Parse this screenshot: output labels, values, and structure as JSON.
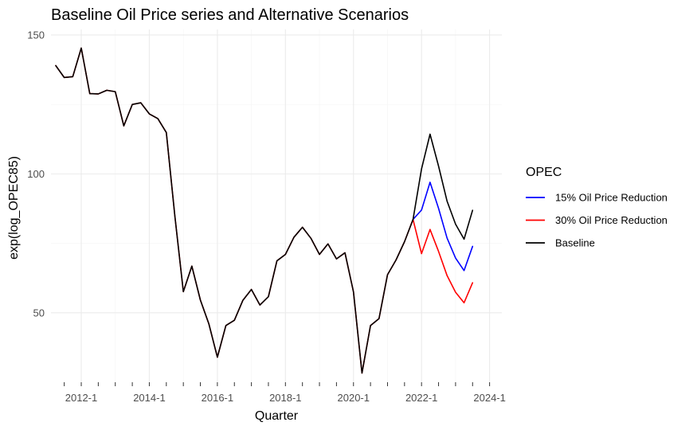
{
  "chart_data": {
    "type": "line",
    "title": "Baseline Oil Price series and Alternative Scenarios",
    "xlabel": "Quarter",
    "ylabel": "exp(log_OPEC85)",
    "x_ticks": [
      "2012-1",
      "2014-1",
      "2016-1",
      "2018-1",
      "2020-1",
      "2022-1",
      "2024-1"
    ],
    "x_tick_values": [
      2012.0,
      2014.0,
      2016.0,
      2018.0,
      2020.0,
      2022.0,
      2024.0
    ],
    "y_ticks": [
      50,
      100,
      150
    ],
    "xlim": [
      2011.11,
      2024.36
    ],
    "ylim": [
      25,
      152
    ],
    "grid": true,
    "legend": {
      "title": "OPEC",
      "position": "right",
      "entries": [
        "15% Oil Price Reduction",
        "30% Oil Price Reduction",
        "Baseline"
      ]
    },
    "series": [
      {
        "name": "15% Oil Price Reduction",
        "color": "#0000ff",
        "x": [
          2021.75,
          2022.0,
          2022.25,
          2022.5,
          2022.75,
          2023.0,
          2023.25,
          2023.5
        ],
        "y": [
          83.6,
          87.0,
          97.0,
          87.6,
          76.9,
          69.7,
          65.2,
          73.9
        ]
      },
      {
        "name": "30% Oil Price Reduction",
        "color": "#ff0000",
        "x": [
          2011.25,
          2011.5,
          2011.75,
          2012.0,
          2012.25,
          2012.5,
          2012.75,
          2013.0,
          2013.25,
          2013.5,
          2013.75,
          2014.0,
          2014.25,
          2014.5,
          2014.75,
          2015.0,
          2015.25,
          2015.5,
          2015.75,
          2016.0,
          2016.25,
          2016.5,
          2016.75,
          2017.0,
          2017.25,
          2017.5,
          2017.75,
          2018.0,
          2018.25,
          2018.5,
          2018.75,
          2019.0,
          2019.25,
          2019.5,
          2019.75,
          2020.0,
          2020.25,
          2020.5,
          2020.75,
          2021.0,
          2021.25,
          2021.5,
          2021.75,
          2022.0,
          2022.25,
          2022.5,
          2022.75,
          2023.0,
          2023.25,
          2023.5
        ],
        "y": [
          139.0,
          134.7,
          135.0,
          145.3,
          128.9,
          128.8,
          130.1,
          129.6,
          117.3,
          125.0,
          125.6,
          121.6,
          119.9,
          114.9,
          84.9,
          57.6,
          66.8,
          54.6,
          46.0,
          34.0,
          45.4,
          47.3,
          54.5,
          58.4,
          52.8,
          55.8,
          68.7,
          71.0,
          77.2,
          80.8,
          76.8,
          71.0,
          74.8,
          69.4,
          71.6,
          57.5,
          28.3,
          45.4,
          47.9,
          63.7,
          69.0,
          75.6,
          83.6,
          71.3,
          80.0,
          72.1,
          63.4,
          57.4,
          53.6,
          60.8
        ]
      },
      {
        "name": "Baseline",
        "color": "#000000",
        "x": [
          2011.25,
          2011.5,
          2011.75,
          2012.0,
          2012.25,
          2012.5,
          2012.75,
          2013.0,
          2013.25,
          2013.5,
          2013.75,
          2014.0,
          2014.25,
          2014.5,
          2014.75,
          2015.0,
          2015.25,
          2015.5,
          2015.75,
          2016.0,
          2016.25,
          2016.5,
          2016.75,
          2017.0,
          2017.25,
          2017.5,
          2017.75,
          2018.0,
          2018.25,
          2018.5,
          2018.75,
          2019.0,
          2019.25,
          2019.5,
          2019.75,
          2020.0,
          2020.25,
          2020.5,
          2020.75,
          2021.0,
          2021.25,
          2021.5,
          2021.75,
          2022.0,
          2022.25,
          2022.5,
          2022.75,
          2023.0,
          2023.25,
          2023.5
        ],
        "y": [
          139.0,
          134.7,
          135.0,
          145.3,
          128.9,
          128.8,
          130.1,
          129.6,
          117.3,
          125.0,
          125.6,
          121.6,
          119.9,
          114.9,
          84.9,
          57.6,
          66.8,
          54.6,
          46.0,
          34.0,
          45.4,
          47.3,
          54.5,
          58.4,
          52.8,
          55.8,
          68.7,
          71.0,
          77.2,
          80.8,
          76.8,
          71.0,
          74.8,
          69.4,
          71.6,
          57.5,
          28.3,
          45.4,
          47.9,
          63.7,
          69.0,
          75.6,
          83.6,
          101.8,
          114.3,
          102.8,
          90.2,
          81.9,
          76.5,
          86.9
        ]
      }
    ]
  }
}
